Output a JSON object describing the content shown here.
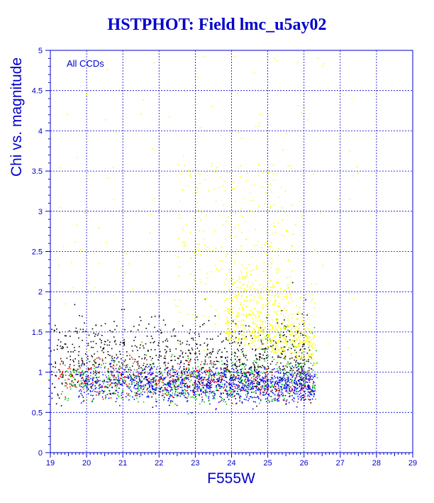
{
  "chart_data": {
    "type": "scatter",
    "title": "HSTPHOT: Field lmc_u5ay02",
    "xlabel": "F555W",
    "ylabel": "Chi vs. magnitude",
    "annotation": "All CCDs",
    "xlim": [
      19,
      29
    ],
    "ylim": [
      0,
      5
    ],
    "x_ticks": [
      "19",
      "20",
      "21",
      "22",
      "23",
      "24",
      "25",
      "26",
      "27",
      "28",
      "29"
    ],
    "y_ticks": [
      "0",
      "0.5",
      "1",
      "1.5",
      "2",
      "2.5",
      "3",
      "3.5",
      "4",
      "4.5",
      "5"
    ],
    "grid": true,
    "colors": {
      "axis": "#0000cc",
      "grid": "#0000cc",
      "title": "#0000cc"
    },
    "series": [
      {
        "color": "#000000",
        "point_count": 900,
        "x_range": [
          19,
          26.2
        ],
        "y_center": 1.1,
        "sample_points": [
          [
            19.3,
            1.6
          ],
          [
            20.1,
            1.3
          ],
          [
            21.0,
            1.2
          ],
          [
            22.5,
            1.1
          ],
          [
            23.8,
            1.0
          ],
          [
            25.0,
            0.95
          ]
        ]
      },
      {
        "color": "#ff0000",
        "point_count": 450,
        "x_range": [
          19.2,
          26.3
        ],
        "y_center": 0.95,
        "sample_points": [
          [
            20.0,
            1.0
          ],
          [
            21.0,
            0.95
          ],
          [
            22.0,
            0.95
          ],
          [
            24.0,
            0.9
          ],
          [
            25.5,
            0.85
          ]
        ]
      },
      {
        "color": "#00cc00",
        "point_count": 650,
        "x_range": [
          19.3,
          26.4
        ],
        "y_center": 0.9,
        "sample_points": [
          [
            20.5,
            0.9
          ],
          [
            22.0,
            0.9
          ],
          [
            23.5,
            0.85
          ],
          [
            25.0,
            1.1
          ],
          [
            26.0,
            0.8
          ]
        ]
      },
      {
        "color": "#0000ff",
        "point_count": 1100,
        "x_range": [
          19.5,
          26.3
        ],
        "y_center": 0.9,
        "sample_points": [
          [
            20.5,
            0.85
          ],
          [
            22.0,
            0.9
          ],
          [
            23.5,
            0.9
          ],
          [
            24.5,
            0.8
          ],
          [
            25.8,
            0.8
          ]
        ]
      },
      {
        "color": "#ffff00",
        "point_count": 1000,
        "x_range": [
          19.2,
          27.5
        ],
        "y_center": 1.7,
        "sample_points": [
          [
            23.3,
            4.9
          ],
          [
            23.5,
            3.8
          ],
          [
            24.5,
            2.0
          ],
          [
            25.0,
            1.6
          ],
          [
            25.5,
            1.3
          ],
          [
            26.0,
            1.2
          ]
        ]
      }
    ]
  }
}
